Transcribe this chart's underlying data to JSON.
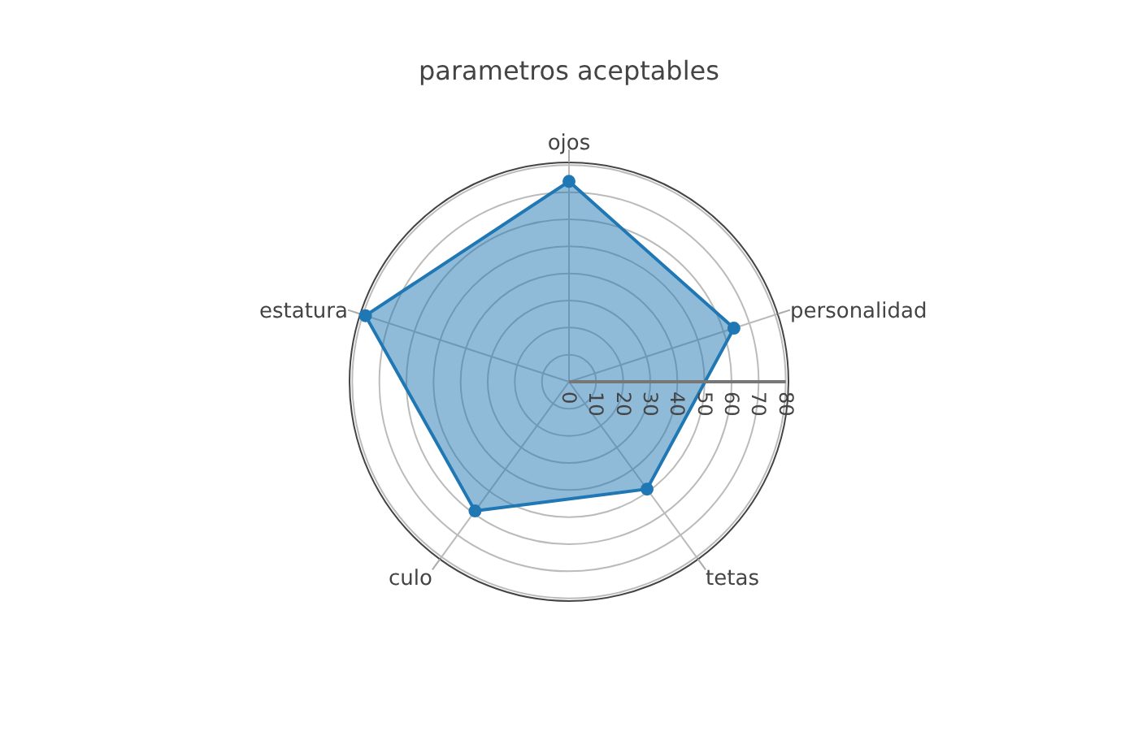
{
  "chart_data": {
    "type": "radar",
    "title": "parametros aceptables",
    "categories": [
      "ojos",
      "personalidad",
      "tetas",
      "culo",
      "estatura"
    ],
    "series": [
      {
        "color": "#1f77b4",
        "values": [
          74,
          64,
          49,
          59,
          79
        ]
      }
    ],
    "ylim": [
      0,
      81
    ],
    "yticks": [
      0,
      10,
      20,
      30,
      40,
      50,
      60,
      70,
      80
    ],
    "grid": true,
    "marker": "circle",
    "legend": false
  }
}
